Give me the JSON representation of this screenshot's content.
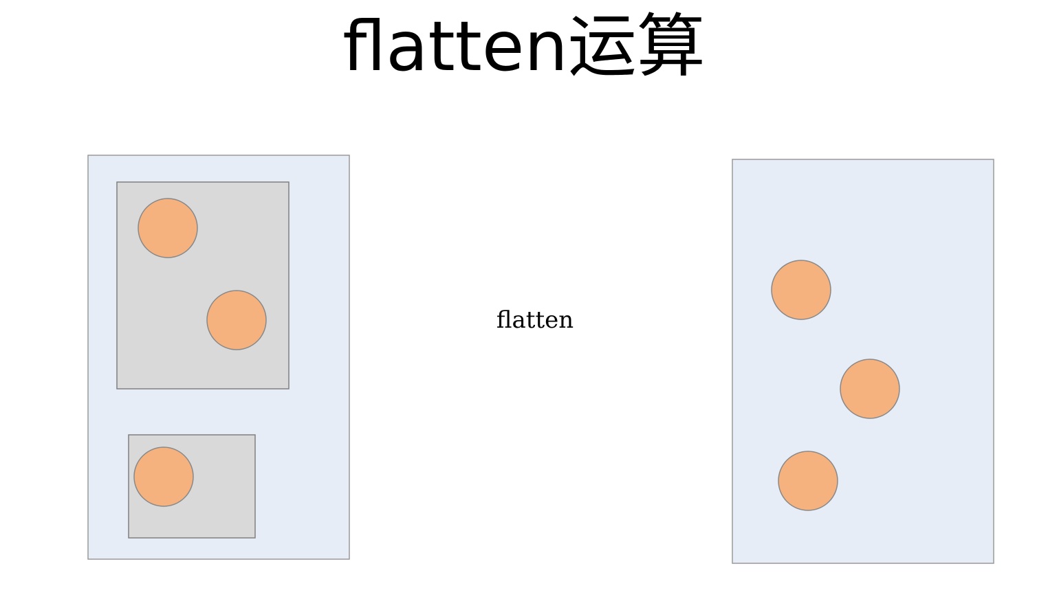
{
  "title": "flatten运算",
  "operation_label": "flatten",
  "colors": {
    "outer_container_fill": "#e7edf7",
    "outer_container_stroke": "#999999",
    "inner_box_fill": "#d9d9d9",
    "inner_box_stroke": "#7f7f7f",
    "element_fill": "#f5b27f",
    "element_stroke": "#888888"
  },
  "before": {
    "groups": [
      {
        "element_count": 2
      },
      {
        "element_count": 1
      }
    ]
  },
  "after": {
    "element_count": 3
  }
}
